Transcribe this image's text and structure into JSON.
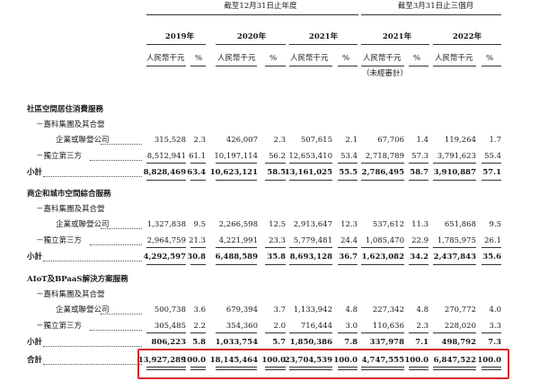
{
  "header": {
    "group_year": "截至12月31日止年度",
    "group_q": "截至3月31日止三個月",
    "years": [
      "2019年",
      "2020年",
      "2021年",
      "2021年",
      "2022年"
    ],
    "unit_rmb": "人民幣千元",
    "unit_pct": "%",
    "unaudited": "（未經審計）"
  },
  "sections": [
    {
      "title": "社區空間居住消費服務",
      "related_l1": "－嘉科集團及其合營",
      "related_l2": "企業或聯營公司",
      "third": "－獨立第三方",
      "related": [
        "315,528",
        "2.3",
        "426,007",
        "2.3",
        "507,615",
        "2.1",
        "67,706",
        "1.4",
        "119,264",
        "1.7"
      ],
      "independent": [
        "8,512,941",
        "61.1",
        "10,197,114",
        "56.2",
        "12,653,410",
        "53.4",
        "2,718,789",
        "57.3",
        "3,791,623",
        "55.4"
      ],
      "subtotal_label": "小計",
      "subtotal": [
        "8,828,469",
        "63.4",
        "10,623,121",
        "58.5",
        "13,161,025",
        "55.5",
        "2,786,495",
        "58.7",
        "3,910,887",
        "57.1"
      ]
    },
    {
      "title": "商企和城市空間綜合服務",
      "related_l1": "－嘉科集團及其合營",
      "related_l2": "企業或聯營公司",
      "third": "－獨立第三方",
      "related": [
        "1,327,838",
        "9.5",
        "2,266,598",
        "12.5",
        "2,913,647",
        "12.3",
        "537,612",
        "11.3",
        "651,868",
        "9.5"
      ],
      "independent": [
        "2,964,759",
        "21.3",
        "4,221,991",
        "23.3",
        "5,779,481",
        "24.4",
        "1,085,470",
        "22.9",
        "1,785,975",
        "26.1"
      ],
      "subtotal_label": "小計",
      "subtotal": [
        "4,292,597",
        "30.8",
        "6,488,589",
        "35.8",
        "8,693,128",
        "36.7",
        "1,623,082",
        "34.2",
        "2,437,843",
        "35.6"
      ]
    },
    {
      "title": "AIoT及BPaaS解決方案服務",
      "related_l1": "－嘉科集團及其合營",
      "related_l2": "企業或聯營公司",
      "third": "－獨立第三方",
      "related": [
        "500,738",
        "3.6",
        "679,394",
        "3.7",
        "1,133,942",
        "4.8",
        "227,342",
        "4.8",
        "270,772",
        "4.0"
      ],
      "independent": [
        "305,485",
        "2.2",
        "354,360",
        "2.0",
        "716,444",
        "3.0",
        "110,636",
        "2.3",
        "228,020",
        "3.3"
      ],
      "subtotal_label": "小計",
      "subtotal": [
        "806,223",
        "5.8",
        "1,033,754",
        "5.7",
        "1,850,386",
        "7.8",
        "337,978",
        "7.1",
        "498,792",
        "7.3"
      ]
    }
  ],
  "total": {
    "label": "合計",
    "values": [
      "13,927,289",
      "100.0",
      "18,145,464",
      "100.0",
      "23,704,539",
      "100.0",
      "4,747,555",
      "100.0",
      "6,847,522",
      "100.0"
    ]
  },
  "colors": {
    "highlight": "#d8262b"
  }
}
